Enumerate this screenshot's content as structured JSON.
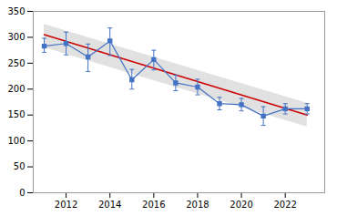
{
  "chart_data": {
    "type": "line",
    "series": [
      {
        "type": "area",
        "x": [
          2011,
          2023
        ],
        "lower": [
          280,
          127
        ],
        "upper": [
          325,
          173
        ],
        "color": "#C8C8C8"
      },
      {
        "type": "line",
        "x": [
          2011,
          2023
        ],
        "values": [
          305,
          150
        ],
        "color": "#CC0000"
      },
      {
        "type": "line",
        "x": [
          2011,
          2012,
          2013,
          2014,
          2015,
          2016,
          2017,
          2018,
          2019,
          2020,
          2021,
          2022,
          2023
        ],
        "values": [
          283,
          288,
          262,
          293,
          218,
          257,
          212,
          204,
          172,
          170,
          148,
          162,
          162
        ],
        "yerr_lower": [
          12,
          22,
          28,
          28,
          18,
          20,
          15,
          15,
          12,
          12,
          18,
          10,
          10
        ],
        "yerr_upper": [
          15,
          22,
          25,
          25,
          20,
          18,
          15,
          15,
          12,
          12,
          18,
          10,
          10
        ],
        "color": "#4472C4",
        "marker": "square",
        "line_style": "solid"
      }
    ],
    "xlim": [
      2010.5,
      2023.8
    ],
    "xticks": [
      2012,
      2014,
      2016,
      2018,
      2020,
      2022
    ],
    "ylim": [
      0,
      350
    ],
    "yticks": [
      0,
      50,
      100,
      150,
      200,
      250,
      300,
      350
    ],
    "grid": false
  }
}
